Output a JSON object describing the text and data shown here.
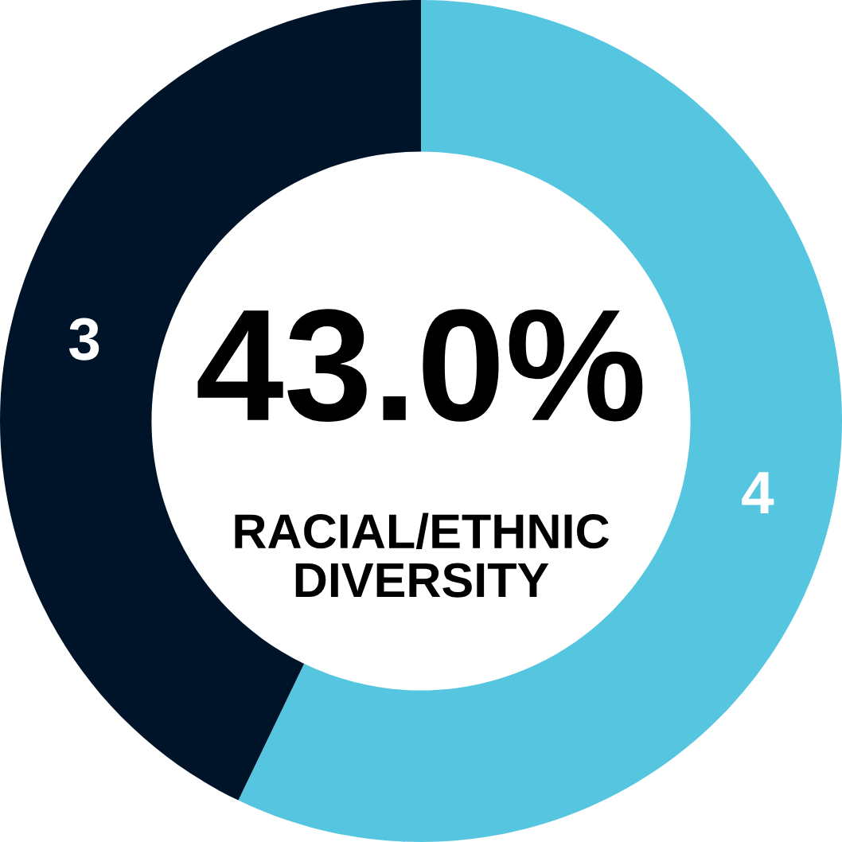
{
  "chart_data": {
    "type": "donut",
    "categories": [
      null,
      null
    ],
    "values": [
      4,
      3
    ],
    "colors": [
      "#56c5df",
      "#001429"
    ],
    "data_labels": true,
    "annotations": [
      "43.0%",
      "RACIAL/ETHNIC\nDIVERSITY"
    ]
  }
}
